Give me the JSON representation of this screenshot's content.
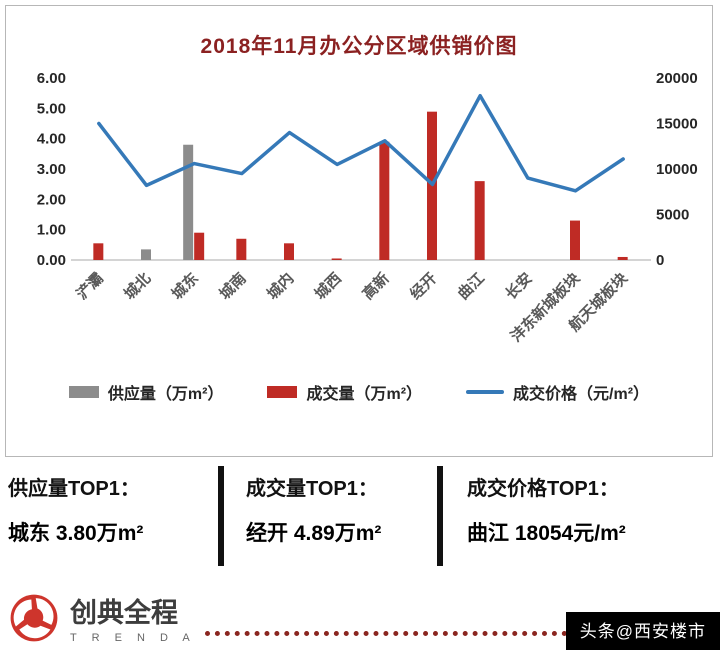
{
  "chart": {
    "title": "2018年11月办公分区域供销价图"
  },
  "chart_data": {
    "type": "bar+line",
    "title": "2018年11月办公分区域供销价图",
    "categories": [
      "浐灞",
      "城北",
      "城东",
      "城南",
      "城内",
      "城西",
      "高新",
      "经开",
      "曲江",
      "长安",
      "沣东新城板块",
      "航天城板块"
    ],
    "series": [
      {
        "name": "供应量（万m²）",
        "type": "bar",
        "axis": "left",
        "color": "#8c8c8c",
        "values": [
          0,
          0.35,
          3.8,
          0,
          0,
          0,
          0,
          0,
          0,
          0,
          0,
          0
        ]
      },
      {
        "name": "成交量（万m²）",
        "type": "bar",
        "axis": "left",
        "color": "#bf2b25",
        "values": [
          0.55,
          0,
          0.9,
          0.7,
          0.55,
          0.05,
          3.9,
          4.89,
          2.6,
          0,
          1.3,
          0.1
        ]
      },
      {
        "name": "成交价格（元/m²）",
        "type": "line",
        "axis": "right",
        "color": "#3579b8",
        "values": [
          15000,
          8200,
          10600,
          9500,
          14000,
          10500,
          13100,
          8300,
          18054,
          9000,
          7600,
          11100
        ]
      }
    ],
    "left_axis": {
      "min": 0,
      "max": 6,
      "step": 1,
      "labels": [
        "0.00",
        "1.00",
        "2.00",
        "3.00",
        "4.00",
        "5.00",
        "6.00"
      ]
    },
    "right_axis": {
      "min": 0,
      "max": 20000,
      "step": 5000,
      "labels": [
        "0",
        "5000",
        "10000",
        "15000",
        "20000"
      ]
    },
    "grid": false,
    "legend_position": "bottom"
  },
  "stats": [
    {
      "label": "供应量TOP1：",
      "value": "城东  3.80万m²"
    },
    {
      "label": "成交量TOP1：",
      "value": "经开 4.89万m²"
    },
    {
      "label": "成交价格TOP1：",
      "value": "曲江 18054元/m²"
    }
  ],
  "footer": {
    "brand": "创典全程",
    "brand_sub": "T R E N D A",
    "watermark": "头条@西安楼市"
  }
}
